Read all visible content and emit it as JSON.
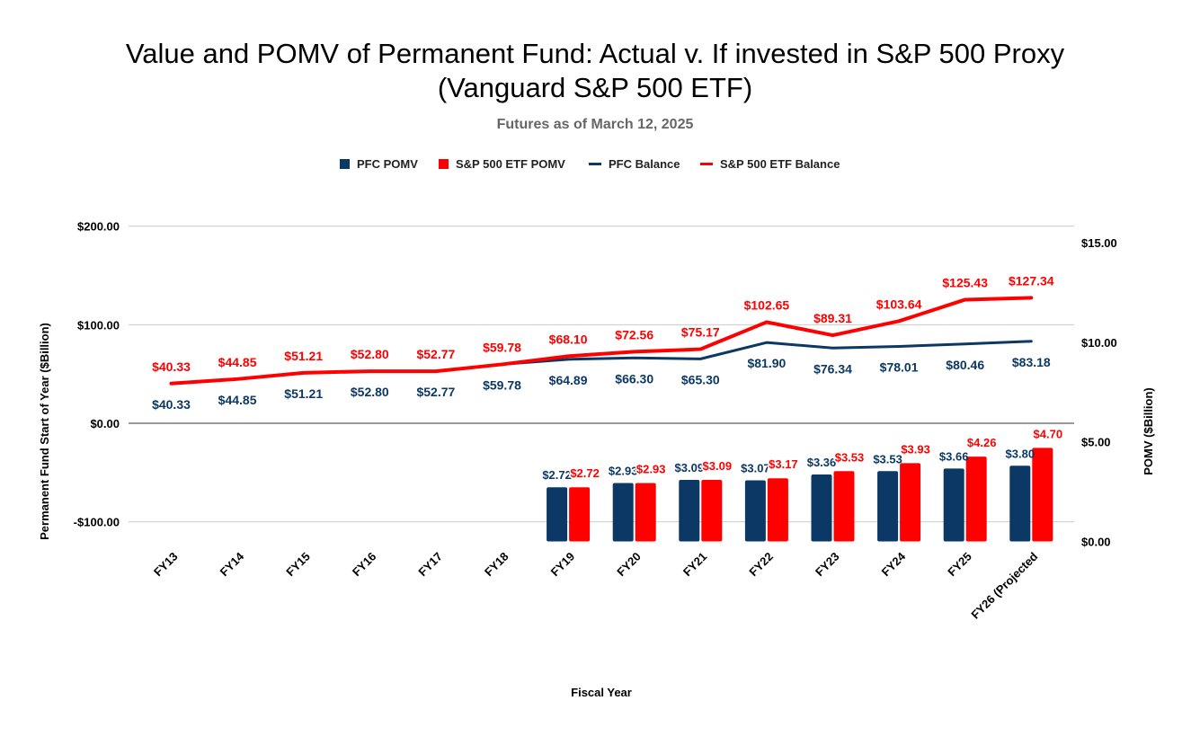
{
  "chart_data": {
    "type": "bar+line",
    "title_line1": "Value and POMV of Permanent Fund: Actual v. If invested in S&P 500 Proxy",
    "title_line2": "(Vanguard S&P 500 ETF)",
    "subtitle": "Futures as of March 12, 2025",
    "xlabel": "Fiscal Year",
    "ylabel_left": "Permanent Fund Start of Year ($Billion)",
    "ylabel_right": "POMV ($Billion)",
    "categories": [
      "FY13",
      "FY14",
      "FY15",
      "FY16",
      "FY17",
      "FY18",
      "FY19",
      "FY20",
      "FY21",
      "FY22",
      "FY23",
      "FY24",
      "FY25",
      "FY26 (Projected"
    ],
    "left_axis": {
      "min": -100,
      "max": 200,
      "ticks": [
        -100,
        0,
        100,
        200
      ],
      "tick_labels": [
        "-$100.00",
        "$0.00",
        "$100.00",
        "$200.00"
      ]
    },
    "right_axis": {
      "min": 0,
      "max": 15,
      "ticks": [
        0,
        5,
        10,
        15
      ],
      "tick_labels": [
        "$0.00",
        "$5.00",
        "$10.00",
        "$15.00"
      ]
    },
    "legend_position": "top",
    "grid": true,
    "colors": {
      "pfc": "#0b3864",
      "sp500": "#ff0000"
    },
    "series": [
      {
        "name": "PFC POMV",
        "kind": "bar",
        "axis": "right",
        "color": "#0b3864",
        "values": [
          null,
          null,
          null,
          null,
          null,
          null,
          2.72,
          2.93,
          3.09,
          3.07,
          3.36,
          3.53,
          3.66,
          3.8
        ],
        "labels": [
          "",
          "",
          "",
          "",
          "",
          "",
          "$2.72",
          "$2.93",
          "$3.09",
          "$3.07",
          "$3.36",
          "$3.53",
          "$3.66",
          "$3.80"
        ]
      },
      {
        "name": "S&P 500 ETF POMV",
        "kind": "bar",
        "axis": "right",
        "color": "#ff0000",
        "values": [
          null,
          null,
          null,
          null,
          null,
          null,
          2.72,
          2.93,
          3.09,
          3.17,
          3.53,
          3.93,
          4.26,
          4.7
        ],
        "labels": [
          "",
          "",
          "",
          "",
          "",
          "",
          "$2.72",
          "$2.93",
          "$3.09",
          "$3.17",
          "$3.53",
          "$3.93",
          "$4.26",
          "$4.70"
        ]
      },
      {
        "name": "PFC Balance",
        "kind": "line",
        "axis": "left",
        "color": "#0b3864",
        "values": [
          40.33,
          44.85,
          51.21,
          52.8,
          52.77,
          59.78,
          64.89,
          66.3,
          65.3,
          81.9,
          76.34,
          78.01,
          80.46,
          83.18
        ],
        "labels": [
          "$40.33",
          "$44.85",
          "$51.21",
          "$52.80",
          "$52.77",
          "$59.78",
          "$64.89",
          "$66.30",
          "$65.30",
          "$81.90",
          "$76.34",
          "$78.01",
          "$80.46",
          "$83.18"
        ]
      },
      {
        "name": "S&P 500 ETF Balance",
        "kind": "line",
        "axis": "left",
        "color": "#ff0000",
        "values": [
          40.33,
          44.85,
          51.21,
          52.8,
          52.77,
          59.78,
          68.1,
          72.56,
          75.17,
          102.65,
          89.31,
          103.64,
          125.43,
          127.34
        ],
        "labels": [
          "$40.33",
          "$44.85",
          "$51.21",
          "$52.80",
          "$52.77",
          "$59.78",
          "$68.10",
          "$72.56",
          "$75.17",
          "$102.65",
          "$89.31",
          "$103.64",
          "$125.43",
          "$127.34"
        ]
      }
    ]
  }
}
